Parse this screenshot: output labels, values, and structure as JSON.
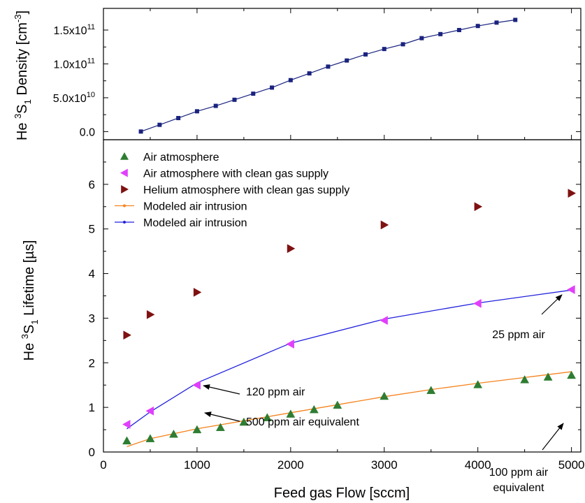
{
  "chart_data": [
    {
      "type": "scatter",
      "panel": "top",
      "ylabel": {
        "pre": "He ",
        "sup1": "3",
        "mid": "S",
        "sub": "1",
        "post": " Density  [cm",
        "sup2": "-3",
        "close": "]"
      },
      "xlim": [
        0,
        5100
      ],
      "ylim": [
        -12000000000.0,
        182000000000.0
      ],
      "yticks": [
        {
          "value": 0,
          "label": "0.0",
          "exp": ""
        },
        {
          "value": 50000000000.0,
          "label": "5.0x10",
          "exp": "10"
        },
        {
          "value": 100000000000.0,
          "label": "1.0x10",
          "exp": "11"
        },
        {
          "value": 150000000000.0,
          "label": "1.5x10",
          "exp": "11"
        }
      ],
      "series": [
        {
          "color": "#1a237e",
          "marker": "square",
          "line": true,
          "x": [
            400,
            600,
            800,
            1000,
            1200,
            1400,
            1600,
            1800,
            2000,
            2200,
            2400,
            2600,
            2800,
            3000,
            3200,
            3400,
            3600,
            3800,
            4000,
            4200,
            4400
          ],
          "y": [
            100000000.0,
            10000000000.0,
            20000000000.0,
            30000000000.0,
            38000000000.0,
            47000000000.0,
            56000000000.0,
            65000000000.0,
            76000000000.0,
            86000000000.0,
            96000000000.0,
            105000000000.0,
            114000000000.0,
            122000000000.0,
            129000000000.0,
            138000000000.0,
            144000000000.0,
            150000000000.0,
            156000000000.0,
            161000000000.0,
            165000000000.0
          ]
        }
      ]
    },
    {
      "type": "scatter",
      "panel": "bottom",
      "xlabel": "Feed gas Flow  [sccm]",
      "ylabel": {
        "pre": "He ",
        "sup1": "3",
        "mid": "S",
        "sub": "1",
        "post": " Lifetime  [µs]"
      },
      "xlim": [
        0,
        5100
      ],
      "ylim": [
        0,
        7
      ],
      "xticks": [
        "0",
        "1000",
        "2000",
        "3000",
        "4000",
        "5000"
      ],
      "yticks": [
        "0",
        "1",
        "2",
        "3",
        "4",
        "5",
        "6"
      ],
      "series": [
        {
          "name": "Air atmosphere",
          "color": "#2e7d32",
          "marker": "triangle-up",
          "x": [
            250,
            500,
            750,
            1000,
            1250,
            1500,
            1750,
            2000,
            2250,
            2500,
            3000,
            3500,
            4000,
            4500,
            4750,
            5000
          ],
          "y": [
            0.25,
            0.3,
            0.4,
            0.5,
            0.55,
            0.67,
            0.77,
            0.85,
            0.95,
            1.05,
            1.25,
            1.38,
            1.51,
            1.62,
            1.68,
            1.72
          ]
        },
        {
          "name": "Air atmosphere with clean gas supply",
          "color": "#e040fb",
          "marker": "triangle-left",
          "x": [
            250,
            500,
            1000,
            2000,
            3000,
            4000,
            5000
          ],
          "y": [
            0.62,
            0.92,
            1.5,
            2.42,
            2.95,
            3.33,
            3.64
          ]
        },
        {
          "name": "Helium atmosphere with clean gas supply",
          "color": "#7f1111",
          "marker": "triangle-right",
          "x": [
            250,
            500,
            1000,
            2000,
            3000,
            4000,
            5000
          ],
          "y": [
            2.62,
            3.08,
            3.58,
            4.56,
            5.09,
            5.5,
            5.8
          ]
        },
        {
          "name": "Modeled air intrusion",
          "color": "#f5831f",
          "marker": "line",
          "x": [
            250,
            500,
            1000,
            1500,
            2000,
            2500,
            3000,
            3500,
            4000,
            4500,
            5000
          ],
          "y": [
            0.12,
            0.3,
            0.52,
            0.7,
            0.88,
            1.06,
            1.24,
            1.4,
            1.54,
            1.67,
            1.8
          ]
        },
        {
          "name": "Modeled air intrusion",
          "color": "#2121dd",
          "marker": "line",
          "x": [
            250,
            500,
            1000,
            2000,
            3000,
            4000,
            5000
          ],
          "y": [
            0.52,
            0.9,
            1.55,
            2.44,
            2.98,
            3.34,
            3.63
          ]
        }
      ],
      "annotations": [
        {
          "lines": [
            "120 ppm air"
          ],
          "target": [
            1000,
            1.5
          ],
          "anchor": "start"
        },
        {
          "lines": [
            "500 ppm air equivalent"
          ],
          "target": [
            1000,
            0.52
          ],
          "anchor": "start"
        },
        {
          "lines": [
            "25 ppm air"
          ],
          "target": [
            5000,
            3.64
          ],
          "anchor": "middle"
        },
        {
          "lines": [
            "100 ppm air",
            "equivalent"
          ],
          "target": [
            5000,
            1.76
          ],
          "anchor": "middle"
        }
      ]
    }
  ]
}
